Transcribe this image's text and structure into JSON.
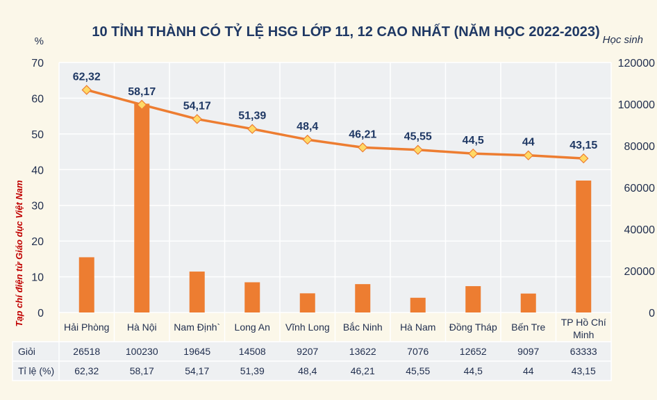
{
  "chart_data": {
    "type": "bar+line",
    "title": "10 TỈNH THÀNH CÓ TỶ LỆ HSG LỚP 11, 12 CAO NHẤT (NĂM HỌC 2022-2023)",
    "left_axis_label": "%",
    "right_axis_label": "Học sinh",
    "side_note": "Tạp chí điện tử Giáo dục Việt Nam",
    "left_axis": {
      "min": 0,
      "max": 70,
      "ticks": [
        "0",
        "10",
        "20",
        "30",
        "40",
        "50",
        "60",
        "70"
      ]
    },
    "right_axis": {
      "min": 0,
      "max": 120000,
      "ticks": [
        "0",
        "20000",
        "40000",
        "60000",
        "80000",
        "100000",
        "120000"
      ]
    },
    "categories": [
      "Hải Phòng",
      "Hà Nội",
      "Nam Định`",
      "Long An",
      "Vĩnh Long",
      "Bắc Ninh",
      "Hà Nam",
      "Đồng Tháp",
      "Bến Tre",
      "TP Hồ Chí Minh"
    ],
    "series": [
      {
        "name": "Giỏi",
        "kind": "bar",
        "axis": "right",
        "color": "#ed7d31",
        "values": [
          26518,
          100230,
          19645,
          14508,
          9207,
          13622,
          7076,
          12652,
          9097,
          63333
        ]
      },
      {
        "name": "Tỉ lệ (%)",
        "kind": "line",
        "axis": "left",
        "color": "#ed7d31",
        "values": [
          62.32,
          58.17,
          54.17,
          51.39,
          48.4,
          46.21,
          45.55,
          44.5,
          44,
          43.15
        ],
        "labels": [
          "62,32",
          "58,17",
          "54,17",
          "51,39",
          "48,4",
          "46,21",
          "45,55",
          "44,5",
          "44",
          "43,15"
        ]
      }
    ],
    "table": {
      "rows": [
        {
          "header": "Giỏi",
          "cells": [
            "26518",
            "100230",
            "19645",
            "14508",
            "9207",
            "13622",
            "7076",
            "12652",
            "9097",
            "63333"
          ]
        },
        {
          "header": "Tỉ lệ (%)",
          "cells": [
            "62,32",
            "58,17",
            "54,17",
            "51,39",
            "48,4",
            "46,21",
            "45,55",
            "44,5",
            "44",
            "43,15"
          ]
        }
      ]
    },
    "grid": true,
    "colors": {
      "background": "#fbf7e9",
      "title": "#1f3864",
      "accent": "#ed7d31",
      "marker": "#ffd966",
      "side_note": "#c00000",
      "grid": "#ffffff"
    }
  }
}
